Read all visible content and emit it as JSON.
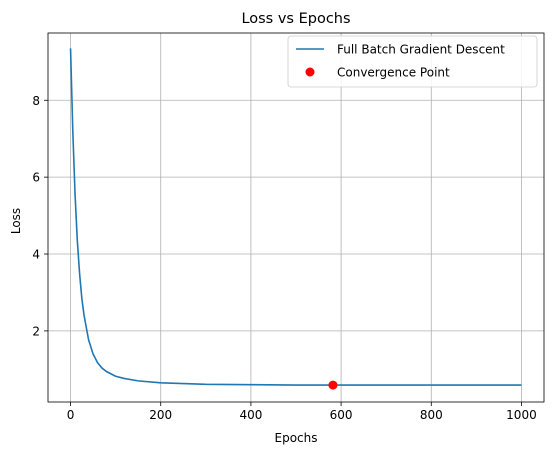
{
  "chart_data": {
    "type": "line",
    "title": "Loss vs Epochs",
    "xlabel": "Epochs",
    "ylabel": "Loss",
    "xlim": [
      -50,
      1050
    ],
    "ylim": [
      0.15,
      9.75
    ],
    "xticks": [
      0,
      200,
      400,
      600,
      800,
      1000
    ],
    "yticks": [
      2,
      4,
      6,
      8
    ],
    "grid": true,
    "legend_position": "top-right",
    "series": [
      {
        "name": "Full Batch Gradient Descent",
        "kind": "line",
        "color": "#1f77b4",
        "x": [
          0,
          5,
          10,
          15,
          20,
          25,
          30,
          40,
          50,
          60,
          70,
          80,
          100,
          120,
          150,
          200,
          250,
          300,
          400,
          500,
          600,
          700,
          800,
          900,
          1000
        ],
        "y": [
          9.35,
          7.2,
          5.55,
          4.35,
          3.5,
          2.85,
          2.4,
          1.77,
          1.4,
          1.17,
          1.03,
          0.94,
          0.82,
          0.76,
          0.7,
          0.65,
          0.63,
          0.61,
          0.6,
          0.59,
          0.59,
          0.59,
          0.59,
          0.59,
          0.59
        ]
      },
      {
        "name": "Convergence Point",
        "kind": "scatter",
        "color": "#ff0000",
        "x": [
          582
        ],
        "y": [
          0.59
        ]
      }
    ]
  }
}
